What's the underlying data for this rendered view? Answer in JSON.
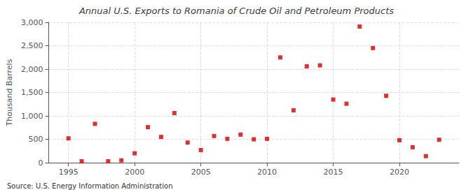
{
  "chart_data": {
    "type": "scatter",
    "title": "Annual U.S. Exports to Romania of Crude Oil and Petroleum Products",
    "ylabel": "Thousand Barrels",
    "annotations": [
      "Source: U.S. Energy Information Administration"
    ],
    "x": [
      1995,
      1996,
      1997,
      1998,
      1999,
      2000,
      2001,
      2002,
      2003,
      2004,
      2005,
      2006,
      2007,
      2008,
      2009,
      2010,
      2011,
      2012,
      2013,
      2014,
      2015,
      2016,
      2017,
      2018,
      2019,
      2020,
      2021,
      2022,
      2023
    ],
    "values": [
      520,
      30,
      830,
      30,
      50,
      200,
      760,
      550,
      1060,
      430,
      270,
      570,
      510,
      600,
      500,
      510,
      2250,
      1120,
      2060,
      2080,
      1350,
      1260,
      2910,
      2450,
      1430,
      480,
      330,
      140,
      490
    ],
    "color": "#cc0000",
    "marker": "square",
    "xlim": [
      1993.5,
      2024.5
    ],
    "xticks": [
      1995,
      2000,
      2005,
      2010,
      2015,
      2020
    ],
    "ylim": [
      0,
      3000
    ],
    "yticks": [
      0,
      500,
      {
        "value": 1000,
        "label": "1,000"
      },
      {
        "value": 1500,
        "label": "1,500"
      },
      {
        "value": 2000,
        "label": "2,000"
      },
      {
        "value": 2500,
        "label": "2,500"
      },
      {
        "value": 3000,
        "label": "3,000"
      }
    ],
    "grid": true
  }
}
